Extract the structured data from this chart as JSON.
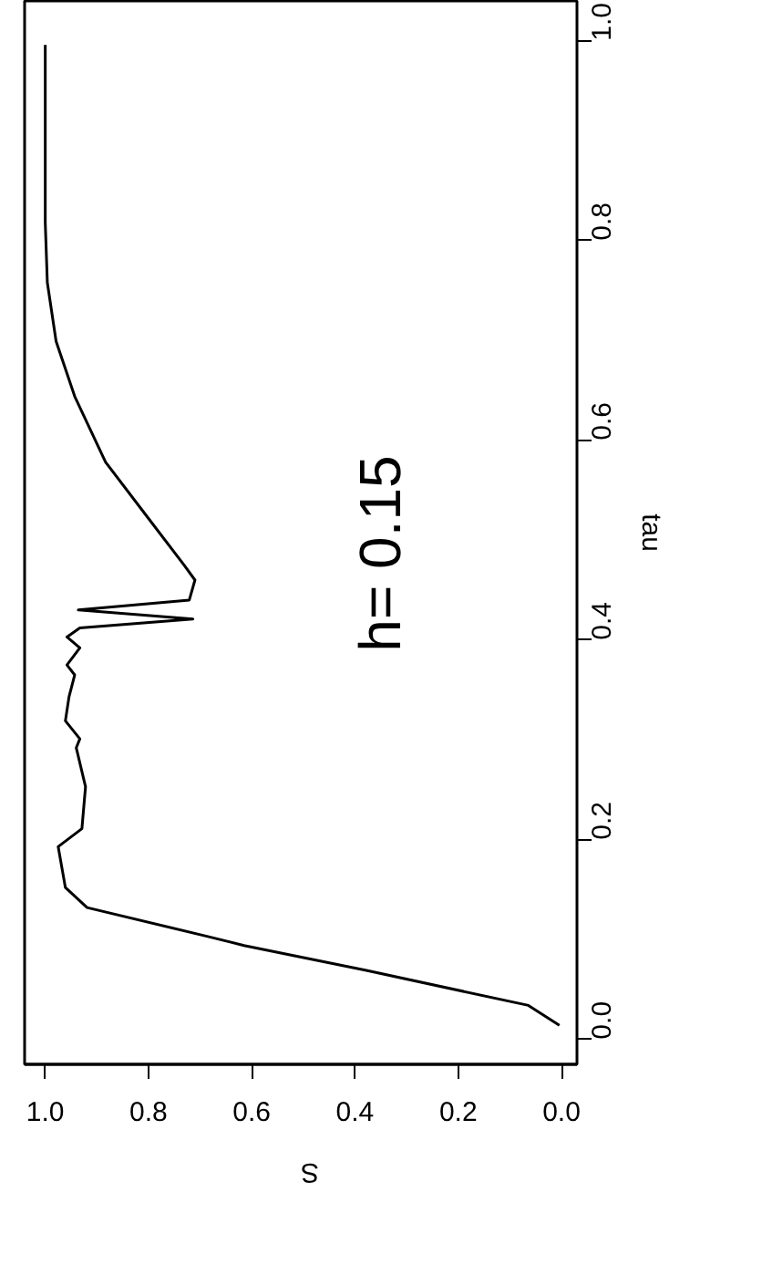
{
  "chart_data": {
    "type": "line",
    "xlabel": "S",
    "ylabel": "tau",
    "x": [
      0.004,
      0.064,
      0.378,
      0.615,
      0.685,
      0.919,
      0.961,
      0.975,
      0.929,
      0.922,
      0.94,
      0.933,
      0.961,
      0.954,
      0.943,
      0.958,
      0.933,
      0.958,
      0.933,
      0.714,
      0.936,
      0.721,
      0.71,
      0.731,
      0.802,
      0.883,
      0.943,
      0.979,
      0.996,
      1.0,
      1.0
    ],
    "values": [
      0.014,
      0.034,
      0.069,
      0.094,
      0.103,
      0.132,
      0.152,
      0.193,
      0.211,
      0.253,
      0.292,
      0.301,
      0.319,
      0.343,
      0.365,
      0.375,
      0.392,
      0.403,
      0.412,
      0.421,
      0.43,
      0.44,
      0.46,
      0.475,
      0.523,
      0.578,
      0.644,
      0.699,
      0.758,
      0.818,
      0.996
    ],
    "color": "#000000",
    "xlim": [
      1.04,
      -0.03
    ],
    "ylim": [
      -0.025,
      1.04
    ],
    "xticks": [
      {
        "value": 0,
        "label": "0.0"
      },
      {
        "value": 0.2,
        "label": "0.2"
      },
      {
        "value": 0.4,
        "label": "0.4"
      },
      {
        "value": 0.6,
        "label": "0.6"
      },
      {
        "value": 0.8,
        "label": "0.8"
      },
      {
        "value": 1,
        "label": "1.0"
      }
    ],
    "yticks": [
      {
        "value": 0,
        "label": "0.0"
      },
      {
        "value": 0.2,
        "label": "0.2"
      },
      {
        "value": 0.4,
        "label": "0.4"
      },
      {
        "value": 0.6,
        "label": "0.6"
      },
      {
        "value": 0.8,
        "label": "0.8"
      },
      {
        "value": 1,
        "label": "1.0"
      }
    ],
    "annotations": [
      "h= 0.15"
    ],
    "grid": false
  }
}
